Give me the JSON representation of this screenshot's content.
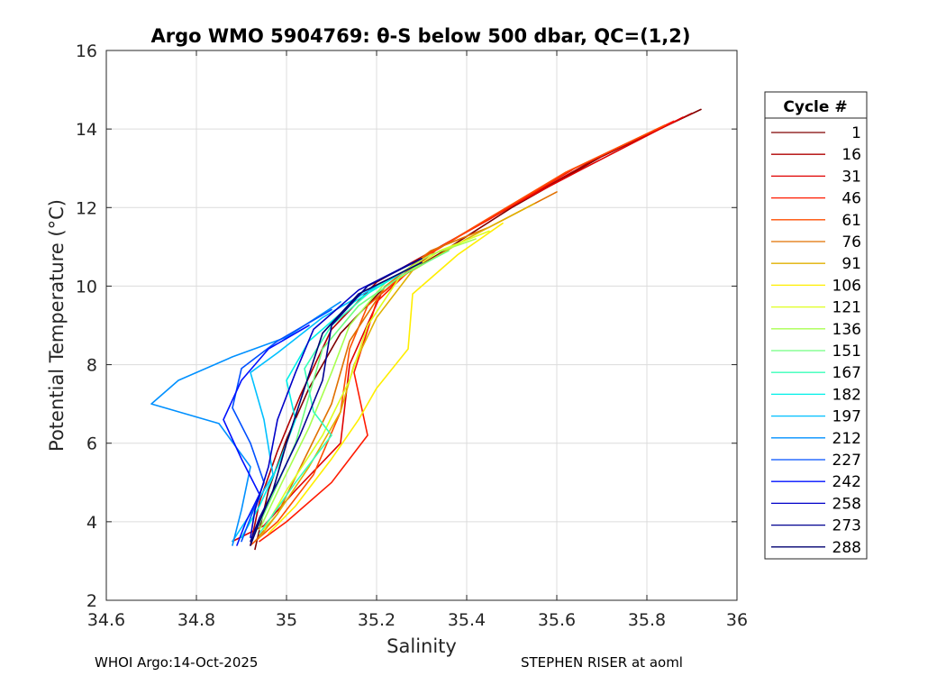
{
  "chart_data": {
    "type": "line",
    "title": "Argo WMO 5904769: θ-S below 500 dbar,  QC=(1,2)",
    "xlabel": "Salinity",
    "ylabel": "Potential Temperature (°C)",
    "xlim": [
      34.6,
      36
    ],
    "ylim": [
      2,
      16
    ],
    "xticks": [
      34.6,
      34.8,
      35,
      35.2,
      35.4,
      35.6,
      35.8,
      36
    ],
    "xtick_labels": [
      "34.6",
      "34.8",
      "35",
      "35.2",
      "35.4",
      "35.6",
      "35.8",
      "36"
    ],
    "yticks": [
      2,
      4,
      6,
      8,
      10,
      12,
      14,
      16
    ],
    "ytick_labels": [
      "2",
      "4",
      "6",
      "8",
      "10",
      "12",
      "14",
      "16"
    ],
    "grid": true,
    "legend": {
      "title": "Cycle #",
      "placement": "right-outside",
      "entries": [
        {
          "label": "1",
          "color": "#800000"
        },
        {
          "label": "16",
          "color": "#b00000"
        },
        {
          "label": "31",
          "color": "#e00000"
        },
        {
          "label": "46",
          "color": "#ff1a00"
        },
        {
          "label": "61",
          "color": "#ff4d00"
        },
        {
          "label": "76",
          "color": "#e07000"
        },
        {
          "label": "91",
          "color": "#e0b000"
        },
        {
          "label": "106",
          "color": "#ffee00"
        },
        {
          "label": "121",
          "color": "#dfff20"
        },
        {
          "label": "136",
          "color": "#a8ff50"
        },
        {
          "label": "151",
          "color": "#70ff80"
        },
        {
          "label": "167",
          "color": "#38ffb8"
        },
        {
          "label": "182",
          "color": "#00f0e8"
        },
        {
          "label": "197",
          "color": "#00c0ff"
        },
        {
          "label": "212",
          "color": "#0090ff"
        },
        {
          "label": "227",
          "color": "#0050ff"
        },
        {
          "label": "242",
          "color": "#0010ff"
        },
        {
          "label": "258",
          "color": "#0000c8"
        },
        {
          "label": "273",
          "color": "#000090"
        },
        {
          "label": "288",
          "color": "#000070"
        }
      ]
    },
    "series": [
      {
        "name": "1",
        "color": "#800000",
        "x": [
          35.92,
          35.7,
          35.5,
          35.35,
          35.22,
          35.12,
          35.05,
          35.0,
          34.96,
          34.93
        ],
        "y": [
          14.5,
          13.3,
          12.0,
          10.9,
          10.0,
          8.8,
          7.4,
          6.1,
          4.8,
          3.3
        ]
      },
      {
        "name": "16",
        "color": "#b00000",
        "x": [
          35.9,
          35.68,
          35.48,
          35.34,
          35.2,
          35.1,
          35.03,
          34.98,
          34.94,
          34.92
        ],
        "y": [
          14.4,
          13.2,
          11.9,
          11.0,
          10.1,
          8.9,
          7.2,
          5.8,
          4.5,
          3.4
        ]
      },
      {
        "name": "31",
        "color": "#e00000",
        "x": [
          35.88,
          35.66,
          35.46,
          35.33,
          35.21,
          35.14,
          35.12,
          35.02,
          34.95,
          34.88
        ],
        "y": [
          14.3,
          13.0,
          11.8,
          10.9,
          9.8,
          8.0,
          6.0,
          4.8,
          3.9,
          3.5
        ]
      },
      {
        "name": "46",
        "color": "#ff1a00",
        "x": [
          35.86,
          35.64,
          35.45,
          35.31,
          35.2,
          35.15,
          35.18,
          35.1,
          35.0,
          34.94
        ],
        "y": [
          14.2,
          13.0,
          11.7,
          10.8,
          9.6,
          7.8,
          6.2,
          5.0,
          4.0,
          3.5
        ]
      },
      {
        "name": "61",
        "color": "#ff4d00",
        "x": [
          35.84,
          35.62,
          35.43,
          35.3,
          35.18,
          35.14,
          35.12,
          35.06,
          34.98,
          34.92
        ],
        "y": [
          14.1,
          12.9,
          11.6,
          10.7,
          9.5,
          8.4,
          6.8,
          5.2,
          4.0,
          3.4
        ]
      },
      {
        "name": "76",
        "color": "#e07000",
        "x": [
          35.6,
          35.45,
          35.32,
          35.22,
          35.14,
          35.1,
          35.04,
          34.98,
          34.93
        ],
        "y": [
          12.4,
          11.5,
          10.9,
          10.0,
          8.6,
          7.0,
          5.6,
          4.2,
          3.5
        ]
      },
      {
        "name": "91",
        "color": "#e0b000",
        "x": [
          35.55,
          35.4,
          35.28,
          35.2,
          35.15,
          35.12,
          35.05,
          34.98,
          34.94
        ],
        "y": [
          12.1,
          11.2,
          10.4,
          9.2,
          8.0,
          6.8,
          5.4,
          4.2,
          3.6
        ]
      },
      {
        "name": "106",
        "color": "#ffee00",
        "x": [
          35.48,
          35.38,
          35.28,
          35.27,
          35.2,
          35.16,
          35.1,
          35.02,
          34.96
        ],
        "y": [
          11.6,
          10.8,
          9.8,
          8.4,
          7.4,
          6.6,
          5.6,
          4.4,
          3.7
        ]
      },
      {
        "name": "121",
        "color": "#dfff20",
        "x": [
          35.45,
          35.34,
          35.25,
          35.18,
          35.14,
          35.08,
          35.0,
          34.95
        ],
        "y": [
          11.4,
          10.9,
          10.2,
          9.0,
          7.6,
          6.2,
          4.8,
          3.8
        ]
      },
      {
        "name": "136",
        "color": "#a8ff50",
        "x": [
          35.42,
          35.32,
          35.22,
          35.14,
          35.1,
          35.05,
          34.99,
          34.94
        ],
        "y": [
          11.2,
          10.8,
          10.1,
          9.0,
          7.8,
          6.4,
          5.0,
          3.8
        ]
      },
      {
        "name": "151",
        "color": "#70ff80",
        "x": [
          35.36,
          35.26,
          35.16,
          35.08,
          35.05,
          35.02,
          34.97,
          34.93
        ],
        "y": [
          10.9,
          10.3,
          9.5,
          8.4,
          7.2,
          6.0,
          4.7,
          3.7
        ]
      },
      {
        "name": "167",
        "color": "#38ffb8",
        "x": [
          35.3,
          35.2,
          35.1,
          35.04,
          35.06,
          35.1,
          35.02,
          34.94
        ],
        "y": [
          10.6,
          10.0,
          9.0,
          7.9,
          6.8,
          6.2,
          5.0,
          3.7
        ]
      },
      {
        "name": "182",
        "color": "#00f0e8",
        "x": [
          35.25,
          35.15,
          35.05,
          35.0,
          35.02,
          34.98,
          34.94,
          34.9
        ],
        "y": [
          10.3,
          9.6,
          8.6,
          7.6,
          6.6,
          5.4,
          4.4,
          3.6
        ]
      },
      {
        "name": "197",
        "color": "#00c0ff",
        "x": [
          35.2,
          35.08,
          34.98,
          34.92,
          34.95,
          34.97,
          34.92,
          34.88
        ],
        "y": [
          10.0,
          9.2,
          8.3,
          7.8,
          6.6,
          5.2,
          4.2,
          3.5
        ]
      },
      {
        "name": "212",
        "color": "#0090ff",
        "x": [
          35.12,
          35.0,
          34.88,
          34.76,
          34.7,
          34.85,
          34.92,
          34.9,
          34.88
        ],
        "y": [
          9.6,
          8.7,
          8.2,
          7.6,
          7.0,
          6.5,
          5.4,
          4.3,
          3.4
        ]
      },
      {
        "name": "227",
        "color": "#0050ff",
        "x": [
          35.1,
          34.98,
          34.9,
          34.88,
          34.92,
          34.95,
          34.92,
          34.9
        ],
        "y": [
          9.4,
          8.6,
          7.9,
          6.9,
          6.0,
          5.0,
          4.1,
          3.5
        ]
      },
      {
        "name": "242",
        "color": "#0010ff",
        "x": [
          35.05,
          34.96,
          34.9,
          34.86,
          34.9,
          34.94,
          34.91,
          34.89
        ],
        "y": [
          9.0,
          8.4,
          7.6,
          6.6,
          5.6,
          4.7,
          4.0,
          3.4
        ]
      },
      {
        "name": "258",
        "color": "#0000c8",
        "x": [
          35.28,
          35.16,
          35.06,
          35.02,
          34.98,
          34.96,
          34.93,
          34.92
        ],
        "y": [
          10.6,
          9.9,
          8.9,
          7.8,
          6.6,
          5.4,
          4.3,
          3.6
        ]
      },
      {
        "name": "273",
        "color": "#000090",
        "x": [
          35.3,
          35.18,
          35.1,
          35.08,
          35.03,
          34.98,
          34.94,
          34.92
        ],
        "y": [
          10.7,
          10.0,
          9.0,
          7.6,
          6.2,
          5.0,
          4.1,
          3.5
        ]
      },
      {
        "name": "288",
        "color": "#000070",
        "x": [
          35.3,
          35.16,
          35.08,
          35.04,
          35.0,
          34.97,
          34.94,
          34.92
        ],
        "y": [
          10.6,
          9.8,
          8.8,
          7.4,
          6.0,
          4.8,
          4.0,
          3.4
        ]
      }
    ]
  },
  "footer": {
    "left": "WHOI Argo:14-Oct-2025",
    "right": "STEPHEN RISER at aoml"
  }
}
